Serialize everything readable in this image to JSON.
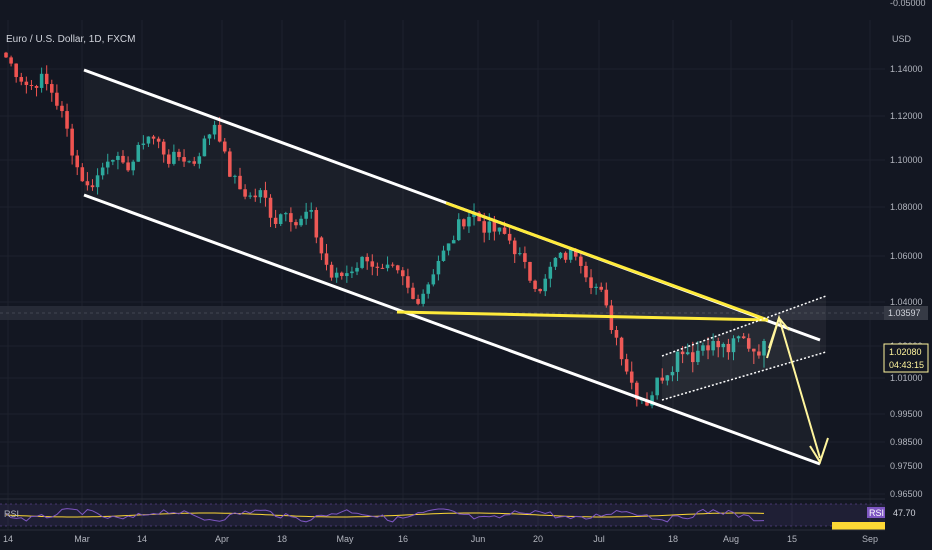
{
  "header": {
    "symbol": "Euro / U.S. Dollar, 1D, FXCM",
    "currency": "USD",
    "top_cut_label": "-0.05000"
  },
  "price_tags": {
    "level": "1.03597",
    "last": "1.02080",
    "countdown": "04:43:15"
  },
  "rsi": {
    "label": "RSI",
    "badge": "RSI",
    "value": "47.70"
  },
  "colors": {
    "background": "#131722",
    "up": "#26a69a",
    "down": "#ef5350",
    "channel": "#ffffff",
    "triangle": "#ffeb3b",
    "arrow": "#fff59d",
    "rsi_line": "#7e57c2",
    "rsi_ma": "#fdd835"
  },
  "chart_data": {
    "type": "candlestick",
    "title": "Euro / U.S. Dollar, 1D, FXCM",
    "ylabel": "USD",
    "ylim": [
      0.96,
      1.155
    ],
    "y_ticks": [
      "1.14000",
      "1.12000",
      "1.10000",
      "1.08000",
      "1.06000",
      "1.04000",
      "1.02000",
      "1.01000",
      "0.99500",
      "0.98500",
      "0.97500",
      "0.96500"
    ],
    "x_ticks": [
      "14",
      "Mar",
      "14",
      "Apr",
      "18",
      "May",
      "16",
      "Jun",
      "20",
      "Jul",
      "18",
      "Aug",
      "15",
      "Sep"
    ],
    "close_path": [
      1.145,
      1.138,
      1.132,
      1.136,
      1.13,
      1.118,
      1.098,
      1.088,
      1.094,
      1.104,
      1.096,
      1.1,
      1.112,
      1.108,
      1.1,
      1.102,
      1.098,
      1.108,
      1.118,
      1.096,
      1.088,
      1.084,
      1.086,
      1.074,
      1.08,
      1.072,
      1.079,
      1.062,
      1.05,
      1.052,
      1.056,
      1.06,
      1.052,
      1.054,
      1.05,
      1.04,
      1.046,
      1.058,
      1.064,
      1.074,
      1.078,
      1.072,
      1.07,
      1.068,
      1.06,
      1.05,
      1.046,
      1.058,
      1.06,
      1.062,
      1.05,
      1.044,
      1.028,
      1.016,
      1.004,
      1.0,
      1.01,
      1.014,
      1.02,
      1.017,
      1.022,
      1.02,
      1.019,
      1.024,
      1.019,
      1.02
    ],
    "annotations": {
      "horizontal_level": 1.03597,
      "descending_channel": "white parallel lines from Feb to Aug",
      "triangle": "yellow converging lines from May-Jun into Aug",
      "rising_wedge": "white dotted lines Jul-Aug",
      "projection": "arrow up to ~1.036 then down to ~0.98"
    }
  }
}
